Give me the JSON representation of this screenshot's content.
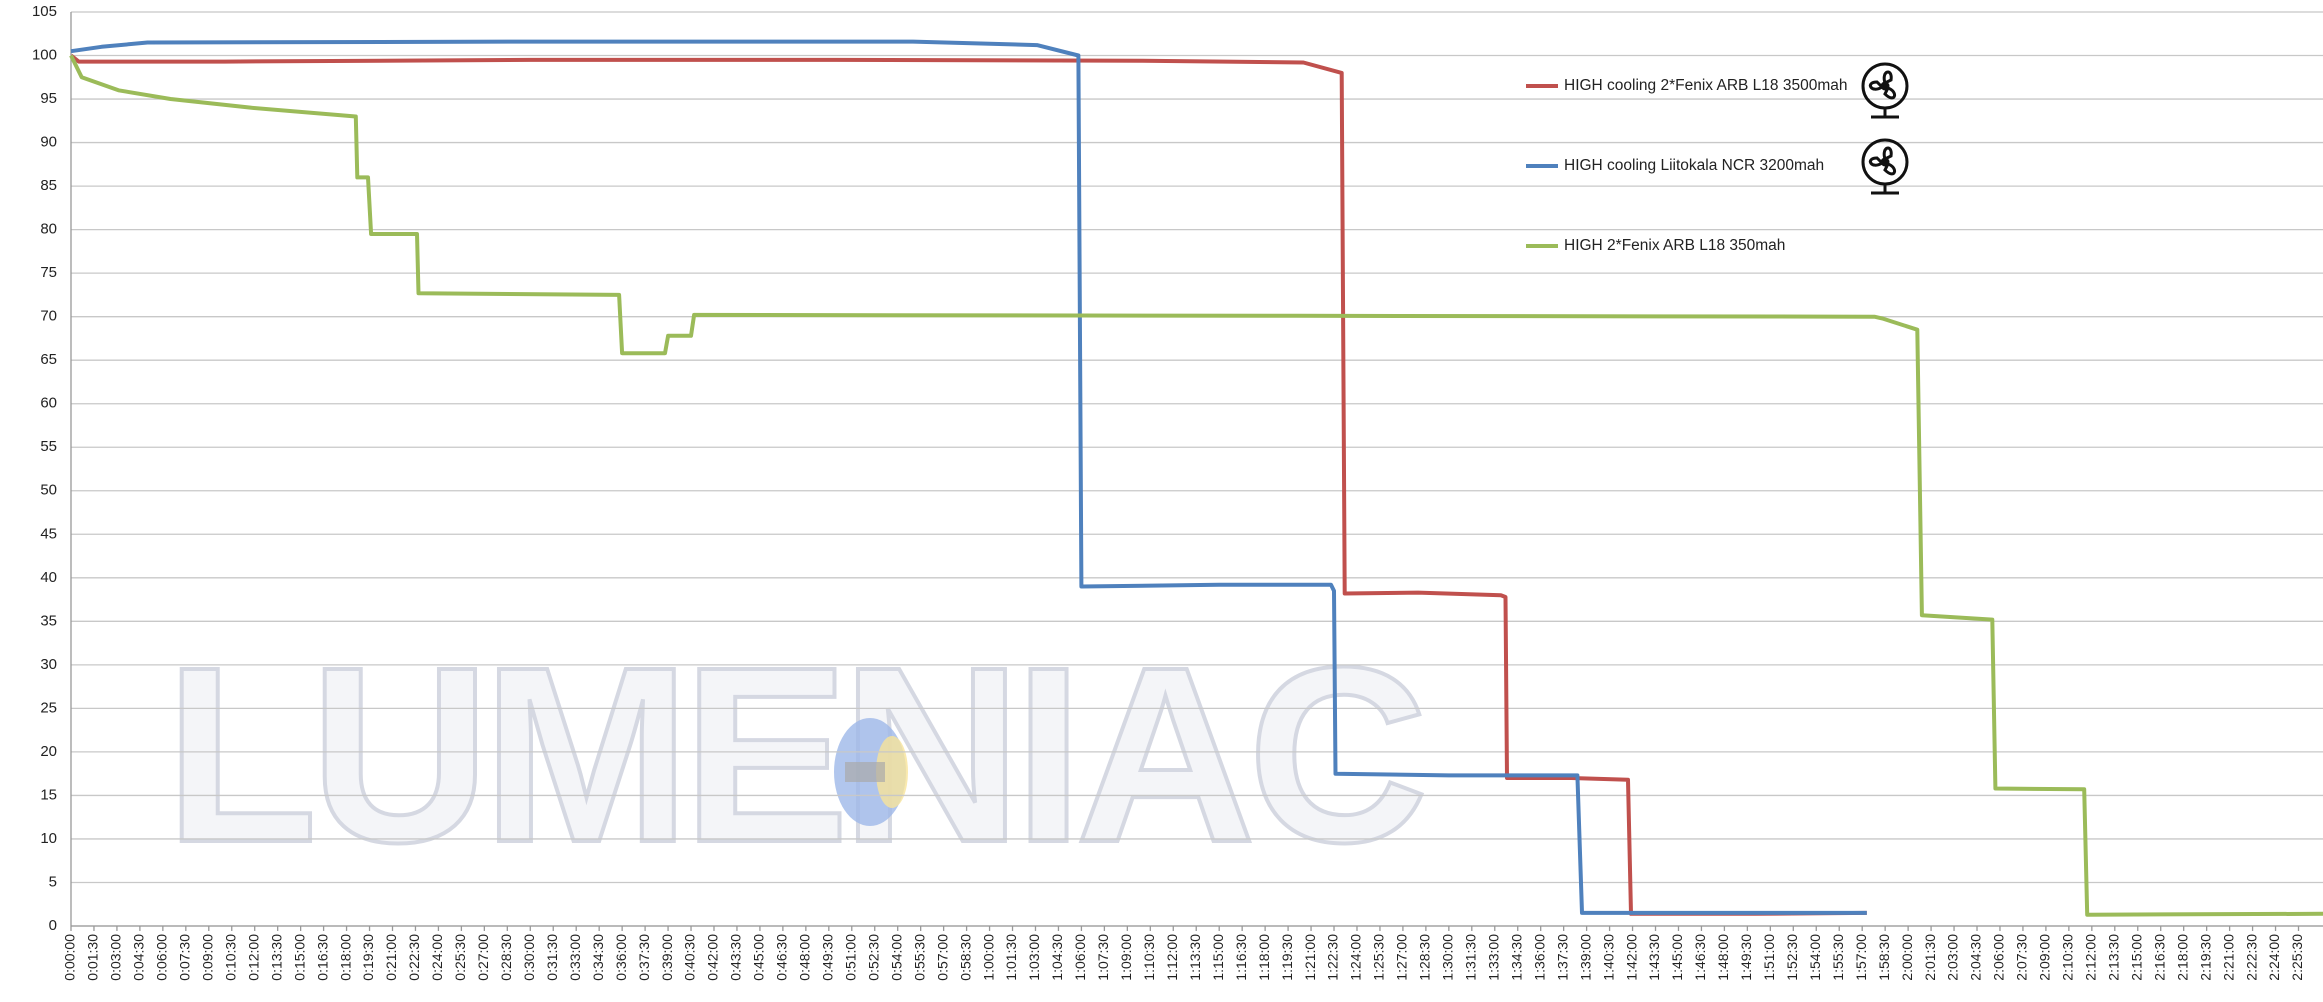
{
  "chart_data": {
    "type": "line",
    "watermark": "LUMENIAC",
    "xlim": [
      0,
      147.1
    ],
    "ylim": [
      0,
      105
    ],
    "yticks": [
      0,
      5,
      10,
      15,
      20,
      25,
      30,
      35,
      40,
      45,
      50,
      55,
      60,
      65,
      70,
      75,
      80,
      85,
      90,
      95,
      100,
      105
    ],
    "xticks": [
      {
        "value": 0,
        "label": "0:00:00"
      },
      {
        "value": 1.5,
        "label": "0:01:30"
      },
      {
        "value": 3,
        "label": "0:03:00"
      },
      {
        "value": 4.5,
        "label": "0:04:30"
      },
      {
        "value": 6,
        "label": "0:06:00"
      },
      {
        "value": 7.5,
        "label": "0:07:30"
      },
      {
        "value": 9,
        "label": "0:09:00"
      },
      {
        "value": 10.5,
        "label": "0:10:30"
      },
      {
        "value": 12,
        "label": "0:12:00"
      },
      {
        "value": 13.5,
        "label": "0:13:30"
      },
      {
        "value": 15,
        "label": "0:15:00"
      },
      {
        "value": 16.5,
        "label": "0:16:30"
      },
      {
        "value": 18,
        "label": "0:18:00"
      },
      {
        "value": 19.5,
        "label": "0:19:30"
      },
      {
        "value": 21,
        "label": "0:21:00"
      },
      {
        "value": 22.5,
        "label": "0:22:30"
      },
      {
        "value": 24,
        "label": "0:24:00"
      },
      {
        "value": 25.5,
        "label": "0:25:30"
      },
      {
        "value": 27,
        "label": "0:27:00"
      },
      {
        "value": 28.5,
        "label": "0:28:30"
      },
      {
        "value": 30,
        "label": "0:30:00"
      },
      {
        "value": 31.5,
        "label": "0:31:30"
      },
      {
        "value": 33,
        "label": "0:33:00"
      },
      {
        "value": 34.5,
        "label": "0:34:30"
      },
      {
        "value": 36,
        "label": "0:36:00"
      },
      {
        "value": 37.5,
        "label": "0:37:30"
      },
      {
        "value": 39,
        "label": "0:39:00"
      },
      {
        "value": 40.5,
        "label": "0:40:30"
      },
      {
        "value": 42,
        "label": "0:42:00"
      },
      {
        "value": 43.5,
        "label": "0:43:30"
      },
      {
        "value": 45,
        "label": "0:45:00"
      },
      {
        "value": 46.5,
        "label": "0:46:30"
      },
      {
        "value": 48,
        "label": "0:48:00"
      },
      {
        "value": 49.5,
        "label": "0:49:30"
      },
      {
        "value": 51,
        "label": "0:51:00"
      },
      {
        "value": 52.5,
        "label": "0:52:30"
      },
      {
        "value": 54,
        "label": "0:54:00"
      },
      {
        "value": 55.5,
        "label": "0:55:30"
      },
      {
        "value": 57,
        "label": "0:57:00"
      },
      {
        "value": 58.5,
        "label": "0:58:30"
      },
      {
        "value": 60,
        "label": "1:00:00"
      },
      {
        "value": 61.5,
        "label": "1:01:30"
      },
      {
        "value": 63,
        "label": "1:03:00"
      },
      {
        "value": 64.5,
        "label": "1:04:30"
      },
      {
        "value": 66,
        "label": "1:06:00"
      },
      {
        "value": 67.5,
        "label": "1:07:30"
      },
      {
        "value": 69,
        "label": "1:09:00"
      },
      {
        "value": 70.5,
        "label": "1:10:30"
      },
      {
        "value": 72,
        "label": "1:12:00"
      },
      {
        "value": 73.5,
        "label": "1:13:30"
      },
      {
        "value": 75,
        "label": "1:15:00"
      },
      {
        "value": 76.5,
        "label": "1:16:30"
      },
      {
        "value": 78,
        "label": "1:18:00"
      },
      {
        "value": 79.5,
        "label": "1:19:30"
      },
      {
        "value": 81,
        "label": "1:21:00"
      },
      {
        "value": 82.5,
        "label": "1:22:30"
      },
      {
        "value": 84,
        "label": "1:24:00"
      },
      {
        "value": 85.5,
        "label": "1:25:30"
      },
      {
        "value": 87,
        "label": "1:27:00"
      },
      {
        "value": 88.5,
        "label": "1:28:30"
      },
      {
        "value": 90,
        "label": "1:30:00"
      },
      {
        "value": 91.5,
        "label": "1:31:30"
      },
      {
        "value": 93,
        "label": "1:33:00"
      },
      {
        "value": 94.5,
        "label": "1:34:30"
      },
      {
        "value": 96,
        "label": "1:36:00"
      },
      {
        "value": 97.5,
        "label": "1:37:30"
      },
      {
        "value": 99,
        "label": "1:39:00"
      },
      {
        "value": 100.5,
        "label": "1:40:30"
      },
      {
        "value": 102,
        "label": "1:42:00"
      },
      {
        "value": 103.5,
        "label": "1:43:30"
      },
      {
        "value": 105,
        "label": "1:45:00"
      },
      {
        "value": 106.5,
        "label": "1:46:30"
      },
      {
        "value": 108,
        "label": "1:48:00"
      },
      {
        "value": 109.5,
        "label": "1:49:30"
      },
      {
        "value": 111,
        "label": "1:51:00"
      },
      {
        "value": 112.5,
        "label": "1:52:30"
      },
      {
        "value": 114,
        "label": "1:54:00"
      },
      {
        "value": 115.5,
        "label": "1:55:30"
      },
      {
        "value": 117,
        "label": "1:57:00"
      },
      {
        "value": 118.5,
        "label": "1:58:30"
      },
      {
        "value": 120,
        "label": "2:00:00"
      },
      {
        "value": 121.5,
        "label": "2:01:30"
      },
      {
        "value": 123,
        "label": "2:03:00"
      },
      {
        "value": 124.5,
        "label": "2:04:30"
      },
      {
        "value": 126,
        "label": "2:06:00"
      },
      {
        "value": 127.5,
        "label": "2:07:30"
      },
      {
        "value": 129,
        "label": "2:09:00"
      },
      {
        "value": 130.5,
        "label": "2:10:30"
      },
      {
        "value": 132,
        "label": "2:12:00"
      },
      {
        "value": 133.5,
        "label": "2:13:30"
      },
      {
        "value": 135,
        "label": "2:15:00"
      },
      {
        "value": 136.5,
        "label": "2:16:30"
      },
      {
        "value": 138,
        "label": "2:18:00"
      },
      {
        "value": 139.5,
        "label": "2:19:30"
      },
      {
        "value": 141,
        "label": "2:21:00"
      },
      {
        "value": 142.5,
        "label": "2:22:30"
      },
      {
        "value": 144,
        "label": "2:24:00"
      },
      {
        "value": 145.5,
        "label": "2:25:30"
      }
    ],
    "grid": true,
    "legend": "top-right",
    "series": [
      {
        "name": "HIGH cooling 2*Fenix ARB L18 3500mah",
        "color": "#c0504d",
        "x": [
          0,
          0.5,
          10,
          30,
          50,
          70,
          80.5,
          83.0,
          83.2,
          88,
          93.4,
          93.7,
          93.8,
          98,
          101.7,
          101.9,
          110,
          117.3
        ],
        "values": [
          100,
          99.3,
          99.3,
          99.5,
          99.5,
          99.4,
          99.2,
          98,
          38.2,
          38.3,
          38,
          37.8,
          17,
          17,
          16.8,
          1.4,
          1.4,
          1.5
        ]
      },
      {
        "name": "HIGH cooling Liitokala NCR 3200mah",
        "color": "#4f81bd",
        "x": [
          0,
          2,
          5,
          30,
          55,
          63.1,
          65.8,
          66.0,
          75,
          82.3,
          82.5,
          82.6,
          90,
          98.4,
          98.7,
          110,
          117.3
        ],
        "values": [
          100.5,
          101,
          101.5,
          101.6,
          101.6,
          101.2,
          100,
          39,
          39.2,
          39.2,
          38.5,
          17.5,
          17.3,
          17.3,
          1.5,
          1.5,
          1.5
        ]
      },
      {
        "name": "HIGH 2*Fenix ARB L18 350mah",
        "color": "#9bbb59",
        "x": [
          0,
          0.7,
          3.1,
          6.5,
          11.8,
          18.6,
          18.7,
          19.4,
          19.6,
          22.6,
          22.7,
          35.8,
          36.0,
          38.8,
          39.0,
          40.5,
          40.7,
          80,
          117.8,
          118.3,
          120.6,
          120.9,
          125.5,
          125.7,
          131.5,
          131.7,
          147.1
        ],
        "values": [
          100,
          97.5,
          96,
          95,
          94,
          93,
          86,
          86,
          79.5,
          79.5,
          72.7,
          72.5,
          65.8,
          65.8,
          67.8,
          67.8,
          70.2,
          70.1,
          70,
          69.8,
          68.5,
          35.7,
          35.2,
          15.8,
          15.7,
          1.3,
          1.4
        ]
      }
    ]
  }
}
